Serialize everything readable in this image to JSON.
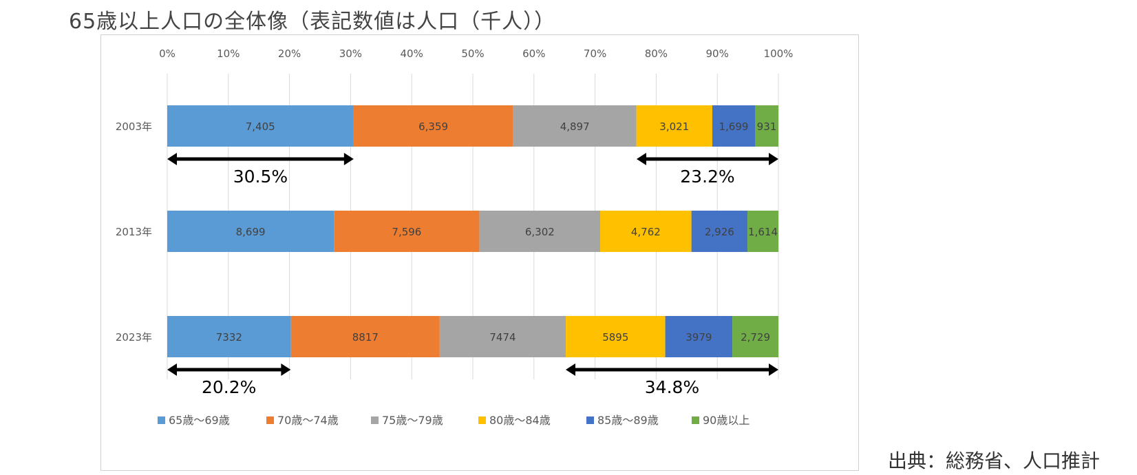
{
  "title": "65歳以上人口の全体像（表記数値は人口（千人））",
  "source": "出典：総務省、人口推計",
  "chart_data": {
    "type": "bar",
    "orientation": "horizontal",
    "stacked": "percent",
    "categories": [
      "2003年",
      "2013年",
      "2023年"
    ],
    "x_ticks": [
      "0%",
      "10%",
      "20%",
      "30%",
      "40%",
      "50%",
      "60%",
      "70%",
      "80%",
      "90%",
      "100%"
    ],
    "xlim": [
      0,
      100
    ],
    "grid": true,
    "legend_position": "bottom",
    "series": [
      {
        "name": "65歳～69歳",
        "color": "#5B9BD5",
        "values": [
          7405,
          8699,
          7332
        ],
        "labels": [
          "7,405",
          "8,699",
          "7332"
        ]
      },
      {
        "name": "70歳～74歳",
        "color": "#ED7D31",
        "values": [
          6359,
          7596,
          8817
        ],
        "labels": [
          "6,359",
          "7,596",
          "8817"
        ]
      },
      {
        "name": "75歳～79歳",
        "color": "#A5A5A5",
        "values": [
          4897,
          6302,
          7474
        ],
        "labels": [
          "4,897",
          "6,302",
          "7474"
        ]
      },
      {
        "name": "80歳～84歳",
        "color": "#FFC000",
        "values": [
          3021,
          4762,
          5895
        ],
        "labels": [
          "3,021",
          "4,762",
          "5895"
        ]
      },
      {
        "name": "85歳～89歳",
        "color": "#4472C4",
        "values": [
          1699,
          2926,
          3979
        ],
        "labels": [
          "1,699",
          "2,926",
          "3979"
        ]
      },
      {
        "name": "90歳以上",
        "color": "#70AD47",
        "values": [
          931,
          1614,
          2729
        ],
        "labels": [
          "931",
          "1,614",
          "2,729"
        ]
      }
    ],
    "annotations": [
      {
        "bar": 0,
        "from_pct": 0,
        "to_pct": 30.5,
        "text": "30.5%"
      },
      {
        "bar": 0,
        "from_pct": 76.8,
        "to_pct": 100,
        "text": "23.2%"
      },
      {
        "bar": 2,
        "from_pct": 0,
        "to_pct": 20.2,
        "text": "20.2%"
      },
      {
        "bar": 2,
        "from_pct": 65.2,
        "to_pct": 100,
        "text": "34.8%"
      }
    ]
  }
}
